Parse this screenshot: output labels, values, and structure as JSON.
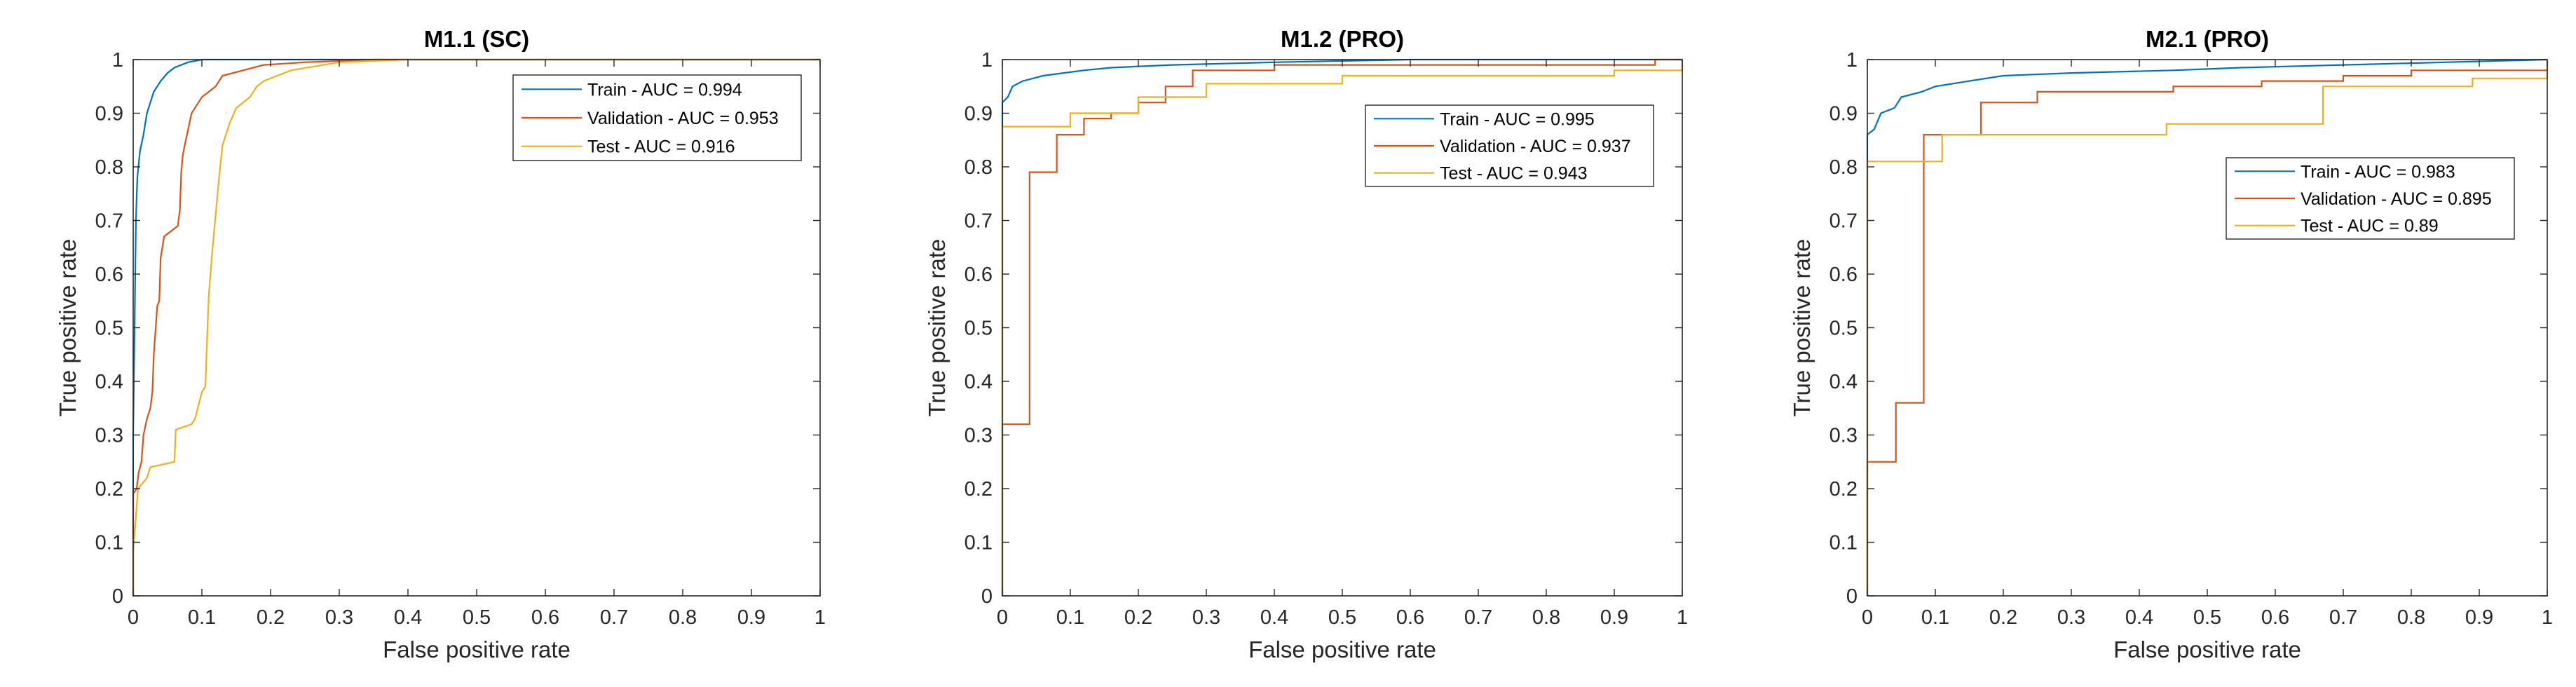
{
  "chart_data": [
    {
      "type": "line",
      "title": "M1.1 (SC)",
      "xlabel": "False positive rate",
      "ylabel": "True positive rate",
      "xlim": [
        0,
        1
      ],
      "ylim": [
        0,
        1
      ],
      "xticks": [
        "0",
        "0.1",
        "0.2",
        "0.3",
        "0.4",
        "0.5",
        "0.6",
        "0.7",
        "0.8",
        "0.9",
        "1"
      ],
      "yticks": [
        "0",
        "0.1",
        "0.2",
        "0.3",
        "0.4",
        "0.5",
        "0.6",
        "0.7",
        "0.8",
        "0.9",
        "1"
      ],
      "grid": false,
      "legend_position": "top-right",
      "series": [
        {
          "name": "Train - AUC = 0.994",
          "color": "#0072BD",
          "points": [
            [
              0,
              0
            ],
            [
              0,
              0.3
            ],
            [
              0.002,
              0.5
            ],
            [
              0.004,
              0.7
            ],
            [
              0.006,
              0.78
            ],
            [
              0.01,
              0.83
            ],
            [
              0.015,
              0.86
            ],
            [
              0.02,
              0.9
            ],
            [
              0.025,
              0.92
            ],
            [
              0.03,
              0.94
            ],
            [
              0.04,
              0.96
            ],
            [
              0.05,
              0.975
            ],
            [
              0.06,
              0.985
            ],
            [
              0.07,
              0.99
            ],
            [
              0.08,
              0.995
            ],
            [
              0.1,
              1
            ],
            [
              1,
              1
            ]
          ]
        },
        {
          "name": "Validation - AUC = 0.953",
          "color": "#D95319",
          "points": [
            [
              0,
              0
            ],
            [
              0,
              0.19
            ],
            [
              0.005,
              0.2
            ],
            [
              0.008,
              0.23
            ],
            [
              0.012,
              0.25
            ],
            [
              0.015,
              0.3
            ],
            [
              0.02,
              0.33
            ],
            [
              0.025,
              0.35
            ],
            [
              0.028,
              0.38
            ],
            [
              0.03,
              0.45
            ],
            [
              0.035,
              0.54
            ],
            [
              0.038,
              0.55
            ],
            [
              0.04,
              0.63
            ],
            [
              0.045,
              0.67
            ],
            [
              0.055,
              0.68
            ],
            [
              0.065,
              0.69
            ],
            [
              0.068,
              0.72
            ],
            [
              0.07,
              0.79
            ],
            [
              0.072,
              0.82
            ],
            [
              0.075,
              0.84
            ],
            [
              0.08,
              0.87
            ],
            [
              0.085,
              0.9
            ],
            [
              0.095,
              0.92
            ],
            [
              0.1,
              0.93
            ],
            [
              0.12,
              0.95
            ],
            [
              0.13,
              0.97
            ],
            [
              0.16,
              0.98
            ],
            [
              0.19,
              0.99
            ],
            [
              0.25,
              0.995
            ],
            [
              0.35,
              1
            ],
            [
              1,
              1
            ]
          ]
        },
        {
          "name": "Test - AUC = 0.916",
          "color": "#EDB120",
          "points": [
            [
              0,
              0
            ],
            [
              0,
              0.08
            ],
            [
              0.007,
              0.2
            ],
            [
              0.02,
              0.22
            ],
            [
              0.025,
              0.24
            ],
            [
              0.06,
              0.25
            ],
            [
              0.062,
              0.31
            ],
            [
              0.085,
              0.32
            ],
            [
              0.09,
              0.33
            ],
            [
              0.1,
              0.38
            ],
            [
              0.105,
              0.39
            ],
            [
              0.11,
              0.56
            ],
            [
              0.115,
              0.64
            ],
            [
              0.12,
              0.71
            ],
            [
              0.125,
              0.78
            ],
            [
              0.13,
              0.84
            ],
            [
              0.14,
              0.88
            ],
            [
              0.15,
              0.91
            ],
            [
              0.17,
              0.93
            ],
            [
              0.18,
              0.95
            ],
            [
              0.19,
              0.96
            ],
            [
              0.23,
              0.98
            ],
            [
              0.3,
              0.995
            ],
            [
              0.4,
              1
            ],
            [
              1,
              1
            ]
          ]
        }
      ]
    },
    {
      "type": "line",
      "title": "M1.2 (PRO)",
      "xlabel": "False positive rate",
      "ylabel": "True positive rate",
      "xlim": [
        0,
        1
      ],
      "ylim": [
        0,
        1
      ],
      "xticks": [
        "0",
        "0.1",
        "0.2",
        "0.3",
        "0.4",
        "0.5",
        "0.6",
        "0.7",
        "0.8",
        "0.9",
        "1"
      ],
      "yticks": [
        "0",
        "0.1",
        "0.2",
        "0.3",
        "0.4",
        "0.5",
        "0.6",
        "0.7",
        "0.8",
        "0.9",
        "1"
      ],
      "grid": false,
      "legend_position": "upper-right",
      "series": [
        {
          "name": "Train - AUC = 0.995",
          "color": "#0072BD",
          "points": [
            [
              0,
              0
            ],
            [
              0,
              0.92
            ],
            [
              0.008,
              0.93
            ],
            [
              0.015,
              0.95
            ],
            [
              0.03,
              0.96
            ],
            [
              0.06,
              0.97
            ],
            [
              0.09,
              0.975
            ],
            [
              0.12,
              0.98
            ],
            [
              0.16,
              0.985
            ],
            [
              0.25,
              0.99
            ],
            [
              0.4,
              0.995
            ],
            [
              0.6,
              1
            ],
            [
              1,
              1
            ]
          ]
        },
        {
          "name": "Validation - AUC = 0.937",
          "color": "#D95319",
          "points": [
            [
              0,
              0
            ],
            [
              0,
              0.32
            ],
            [
              0.04,
              0.32
            ],
            [
              0.04,
              0.79
            ],
            [
              0.08,
              0.79
            ],
            [
              0.08,
              0.86
            ],
            [
              0.12,
              0.86
            ],
            [
              0.12,
              0.89
            ],
            [
              0.16,
              0.89
            ],
            [
              0.16,
              0.9
            ],
            [
              0.2,
              0.9
            ],
            [
              0.2,
              0.92
            ],
            [
              0.24,
              0.92
            ],
            [
              0.24,
              0.95
            ],
            [
              0.28,
              0.95
            ],
            [
              0.28,
              0.98
            ],
            [
              0.4,
              0.98
            ],
            [
              0.4,
              0.99
            ],
            [
              0.96,
              0.99
            ],
            [
              0.96,
              1
            ],
            [
              1,
              1
            ]
          ]
        },
        {
          "name": "Test - AUC = 0.943",
          "color": "#EDB120",
          "points": [
            [
              0,
              0
            ],
            [
              0,
              0.875
            ],
            [
              0.1,
              0.875
            ],
            [
              0.1,
              0.9
            ],
            [
              0.2,
              0.9
            ],
            [
              0.2,
              0.93
            ],
            [
              0.3,
              0.93
            ],
            [
              0.3,
              0.955
            ],
            [
              0.5,
              0.955
            ],
            [
              0.5,
              0.97
            ],
            [
              0.9,
              0.97
            ],
            [
              0.9,
              0.98
            ],
            [
              1,
              0.98
            ],
            [
              1,
              1
            ]
          ]
        }
      ]
    },
    {
      "type": "line",
      "title": "M2.1 (PRO)",
      "xlabel": "False positive rate",
      "ylabel": "True positive rate",
      "xlim": [
        0,
        1
      ],
      "ylim": [
        0,
        1
      ],
      "xticks": [
        "0",
        "0.1",
        "0.2",
        "0.3",
        "0.4",
        "0.5",
        "0.6",
        "0.7",
        "0.8",
        "0.9",
        "1"
      ],
      "yticks": [
        "0",
        "0.1",
        "0.2",
        "0.3",
        "0.4",
        "0.5",
        "0.6",
        "0.7",
        "0.8",
        "0.9",
        "1"
      ],
      "grid": false,
      "legend_position": "right",
      "series": [
        {
          "name": "Train - AUC = 0.983",
          "color": "#0072BD",
          "points": [
            [
              0,
              0
            ],
            [
              0,
              0.86
            ],
            [
              0.01,
              0.87
            ],
            [
              0.02,
              0.9
            ],
            [
              0.04,
              0.91
            ],
            [
              0.05,
              0.93
            ],
            [
              0.08,
              0.94
            ],
            [
              0.1,
              0.95
            ],
            [
              0.15,
              0.96
            ],
            [
              0.2,
              0.97
            ],
            [
              0.3,
              0.975
            ],
            [
              0.45,
              0.98
            ],
            [
              0.55,
              0.985
            ],
            [
              0.7,
              0.99
            ],
            [
              0.85,
              0.995
            ],
            [
              1,
              1
            ]
          ]
        },
        {
          "name": "Validation - AUC = 0.895",
          "color": "#D95319",
          "points": [
            [
              0,
              0
            ],
            [
              0,
              0.25
            ],
            [
              0.042,
              0.25
            ],
            [
              0.042,
              0.36
            ],
            [
              0.083,
              0.36
            ],
            [
              0.083,
              0.86
            ],
            [
              0.167,
              0.86
            ],
            [
              0.167,
              0.92
            ],
            [
              0.25,
              0.92
            ],
            [
              0.25,
              0.94
            ],
            [
              0.45,
              0.94
            ],
            [
              0.45,
              0.95
            ],
            [
              0.58,
              0.95
            ],
            [
              0.58,
              0.96
            ],
            [
              0.7,
              0.96
            ],
            [
              0.7,
              0.97
            ],
            [
              0.8,
              0.97
            ],
            [
              0.8,
              0.98
            ],
            [
              1,
              0.98
            ],
            [
              1,
              1
            ]
          ]
        },
        {
          "name": "Test - AUC = 0.89",
          "color": "#EDB120",
          "points": [
            [
              0,
              0
            ],
            [
              0,
              0.81
            ],
            [
              0.11,
              0.81
            ],
            [
              0.11,
              0.86
            ],
            [
              0.44,
              0.86
            ],
            [
              0.44,
              0.88
            ],
            [
              0.67,
              0.88
            ],
            [
              0.67,
              0.95
            ],
            [
              0.89,
              0.95
            ],
            [
              0.89,
              0.965
            ],
            [
              1,
              0.965
            ],
            [
              1,
              1
            ]
          ]
        }
      ]
    }
  ]
}
